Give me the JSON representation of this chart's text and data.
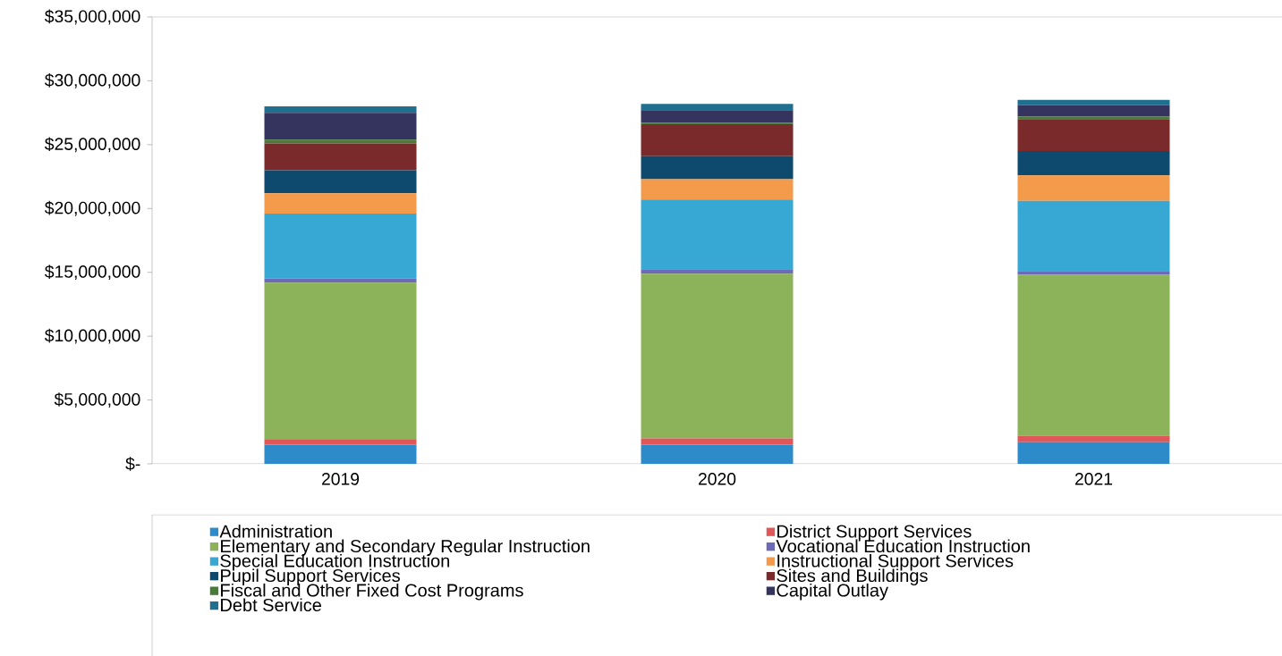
{
  "chart_data": {
    "type": "bar",
    "stacked": true,
    "categories": [
      "2019",
      "2020",
      "2021"
    ],
    "ylim": [
      0,
      35000000
    ],
    "yticks": [
      {
        "value": 0,
        "label": "$-"
      },
      {
        "value": 5000000,
        "label": "$5,000,000"
      },
      {
        "value": 10000000,
        "label": "$10,000,000"
      },
      {
        "value": 15000000,
        "label": "$15,000,000"
      },
      {
        "value": 20000000,
        "label": "$20,000,000"
      },
      {
        "value": 25000000,
        "label": "$25,000,000"
      },
      {
        "value": 30000000,
        "label": "$30,000,000"
      },
      {
        "value": 35000000,
        "label": "$35,000,000"
      }
    ],
    "grid": false,
    "legend": "bottom",
    "series": [
      {
        "name": "Administration",
        "color": "#2e8bc9",
        "values": [
          1500000,
          1500000,
          1700000
        ]
      },
      {
        "name": "District Support Services",
        "color": "#e0575a",
        "values": [
          450000,
          500000,
          500000
        ]
      },
      {
        "name": "Elementary and Secondary Regular Instruction",
        "color": "#8db35a",
        "values": [
          12250000,
          12900000,
          12600000
        ]
      },
      {
        "name": "Vocational Education Instruction",
        "color": "#6b6bb8",
        "values": [
          300000,
          350000,
          300000
        ]
      },
      {
        "name": "Special Education Instruction",
        "color": "#37a8d3",
        "values": [
          5100000,
          5450000,
          5500000
        ]
      },
      {
        "name": "Instructional Support Services",
        "color": "#f39b4b",
        "values": [
          1600000,
          1600000,
          2000000
        ]
      },
      {
        "name": "Pupil Support Services",
        "color": "#0d4a6e",
        "values": [
          1800000,
          1800000,
          1900000
        ]
      },
      {
        "name": "Sites and Buildings",
        "color": "#7a2a2a",
        "values": [
          2100000,
          2500000,
          2500000
        ]
      },
      {
        "name": "Fiscal and Other Fixed Cost Programs",
        "color": "#4a7a38",
        "values": [
          300000,
          100000,
          200000
        ]
      },
      {
        "name": "Capital Outlay",
        "color": "#34345e",
        "values": [
          2100000,
          1000000,
          900000
        ]
      },
      {
        "name": "Debt Service",
        "color": "#1f6f8f",
        "values": [
          500000,
          500000,
          400000
        ]
      }
    ]
  }
}
